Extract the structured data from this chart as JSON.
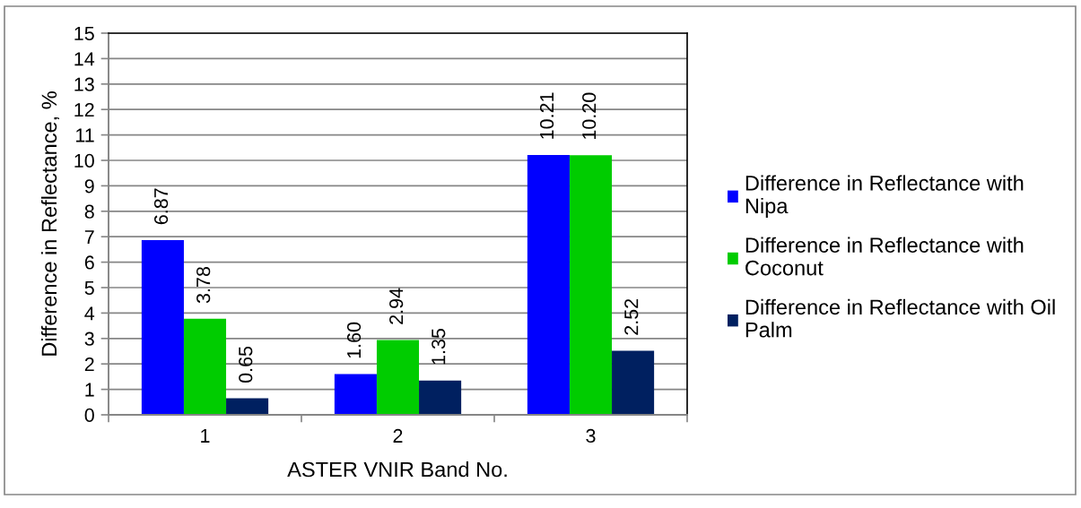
{
  "chart_data": {
    "type": "bar",
    "xlabel": "ASTER VNIR Band No.",
    "ylabel": "Difference in Reflectance, %",
    "categories": [
      "1",
      "2",
      "3"
    ],
    "series": [
      {
        "name": "Difference in Reflectance with Nipa",
        "color": "#0000ff",
        "values": [
          6.87,
          1.6,
          10.21
        ],
        "value_labels": [
          "6.87",
          "1.60",
          "10.21"
        ]
      },
      {
        "name": "Difference in Reflectance with Coconut",
        "color": "#00cc00",
        "values": [
          3.78,
          2.94,
          10.2
        ],
        "value_labels": [
          "3.78",
          "2.94",
          "10.20"
        ]
      },
      {
        "name": "Difference in Reflectance with Oil Palm",
        "color": "#002060",
        "values": [
          0.65,
          1.35,
          2.52
        ],
        "value_labels": [
          "0.65",
          "1.35",
          "2.52"
        ]
      }
    ],
    "ylim": [
      0,
      15
    ],
    "yticks": [
      0,
      1,
      2,
      3,
      4,
      5,
      6,
      7,
      8,
      9,
      10,
      11,
      12,
      13,
      14,
      15
    ],
    "grid": "y",
    "legend": "right"
  }
}
